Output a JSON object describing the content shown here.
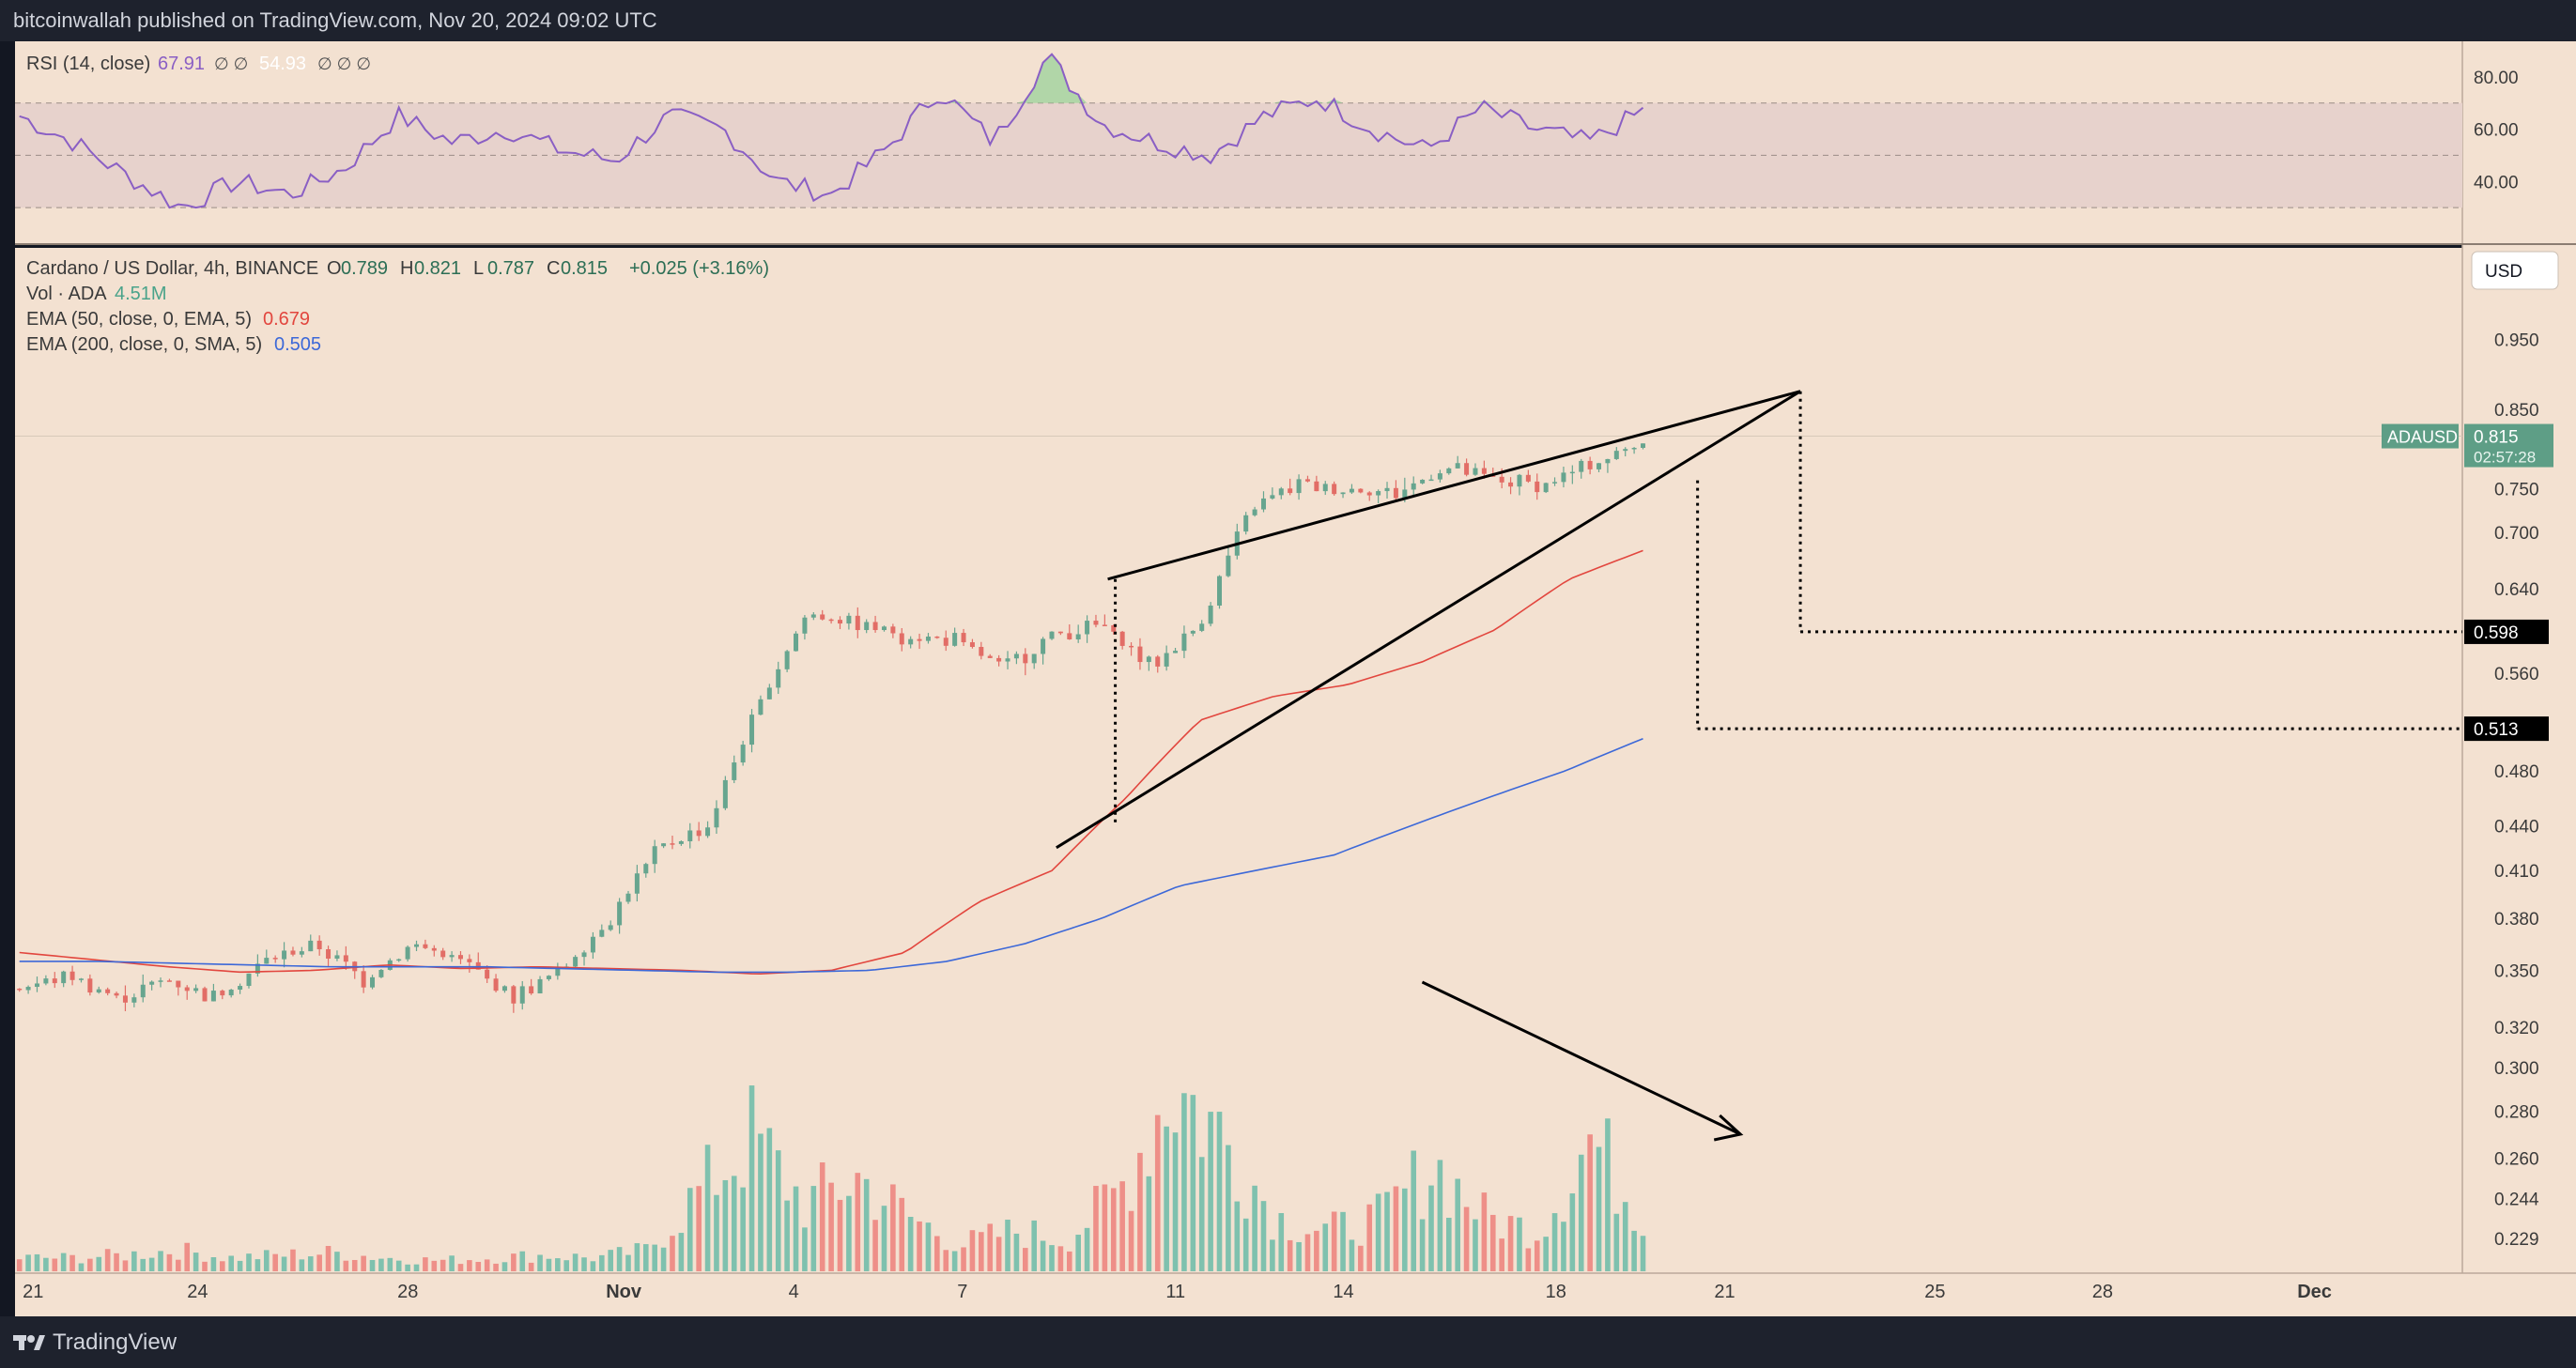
{
  "header": {
    "publisher": "bitcoinwallah published on TradingView.com, Nov 20, 2024 09:02 UTC"
  },
  "footer": {
    "brand": "TradingView",
    "logo_icon": "tradingview-logo-icon"
  },
  "colors": {
    "bg": "#f3e1d1",
    "up": "#67a58f",
    "down": "#e26d66",
    "ema50": "#e2463e",
    "ema200": "#3c68d8",
    "rsi": "#8a5fc4",
    "vol_up": "#7fc1ae",
    "vol_down": "#ee8f88"
  },
  "chart_data": {
    "type": "candlestick",
    "symbol_line": "Cardano / US Dollar, 4h, BINANCE",
    "ohlc_line": {
      "o_label": "O",
      "o": "0.789",
      "h_label": "H",
      "h": "0.821",
      "l_label": "L",
      "l": "0.787",
      "c_label": "C",
      "c": "0.815",
      "change": "+0.025 (+3.16%)"
    },
    "vol_line": {
      "label": "Vol · ADA",
      "value": "4.51M"
    },
    "ema50_line": {
      "label": "EMA (50, close, 0, EMA, 5)",
      "value": "0.679"
    },
    "ema200_line": {
      "label": "EMA (200, close, 0, SMA, 5)",
      "value": "0.505"
    },
    "rsi_line": {
      "label": "RSI (14, close)",
      "value": "67.91",
      "symbols": "∅ ∅",
      "value2": "54.93",
      "symbols2": "∅ ∅ ∅"
    },
    "currency": "USD",
    "symbol_tag": "ADAUSD",
    "last_price": "0.815",
    "countdown": "02:57:28",
    "y_ticks": [
      "0.950",
      "0.850",
      "0.750",
      "0.700",
      "0.640",
      "0.560",
      "0.480",
      "0.440",
      "0.410",
      "0.380",
      "0.350",
      "0.320",
      "0.300",
      "0.280",
      "0.260",
      "0.244",
      "0.229"
    ],
    "rsi_ticks": [
      "80.00",
      "60.00",
      "40.00"
    ],
    "x_ticks": [
      "21",
      "24",
      "28",
      "Nov",
      "4",
      "7",
      "11",
      "14",
      "18",
      "21",
      "25",
      "28",
      "Dec"
    ],
    "targets": [
      "0.598",
      "0.513"
    ],
    "price_anchors": [
      [
        0.32,
        0.36
      ],
      [
        0.34,
        0.355
      ],
      [
        0.33,
        0.34
      ],
      [
        0.34,
        0.35
      ],
      [
        0.33,
        0.34
      ],
      [
        0.35,
        0.36
      ],
      [
        0.36,
        0.37
      ],
      [
        0.34,
        0.35
      ],
      [
        0.36,
        0.37
      ],
      [
        0.35,
        0.36
      ],
      [
        0.33,
        0.34
      ],
      [
        0.34,
        0.36
      ],
      [
        0.37,
        0.39
      ],
      [
        0.41,
        0.44
      ],
      [
        0.43,
        0.45
      ],
      [
        0.44,
        0.62
      ],
      [
        0.6,
        0.63
      ],
      [
        0.6,
        0.615
      ],
      [
        0.59,
        0.6
      ],
      [
        0.56,
        0.62
      ],
      [
        0.53,
        0.6
      ],
      [
        0.59,
        0.6
      ],
      [
        0.6,
        0.61
      ],
      [
        0.56,
        0.57
      ],
      [
        0.58,
        0.63
      ],
      [
        0.69,
        0.76
      ],
      [
        0.75,
        0.76
      ],
      [
        0.73,
        0.77
      ],
      [
        0.73,
        0.76
      ],
      [
        0.76,
        0.79
      ],
      [
        0.75,
        0.77
      ],
      [
        0.75,
        0.76
      ],
      [
        0.77,
        0.79
      ],
      [
        0.8,
        0.815
      ]
    ],
    "ema50_anchors": [
      0.36,
      0.356,
      0.352,
      0.349,
      0.35,
      0.353,
      0.351,
      0.352,
      0.351,
      0.35,
      0.348,
      0.35,
      0.36,
      0.39,
      0.41,
      0.46,
      0.52,
      0.54,
      0.55,
      0.57,
      0.6,
      0.65,
      0.68
    ],
    "ema200_anchors": [
      0.355,
      0.355,
      0.354,
      0.353,
      0.352,
      0.352,
      0.352,
      0.351,
      0.35,
      0.349,
      0.349,
      0.35,
      0.355,
      0.365,
      0.38,
      0.4,
      0.41,
      0.42,
      0.44,
      0.46,
      0.48,
      0.505
    ],
    "rsi_anchors": [
      65,
      55,
      42,
      30,
      40,
      35,
      45,
      65,
      55,
      60,
      52,
      48,
      65,
      60,
      40,
      35,
      52,
      75,
      55,
      88,
      62,
      55,
      50,
      65,
      72,
      60,
      52,
      68,
      60,
      55,
      67
    ],
    "volume_anchors": [
      0.05,
      0.05,
      0.06,
      0.08,
      0.05,
      0.06,
      0.07,
      0.05,
      0.04,
      0.05,
      0.06,
      0.05,
      0.08,
      0.3,
      0.5,
      0.25,
      0.35,
      0.2,
      0.1,
      0.15,
      0.12,
      0.3,
      0.7,
      0.5,
      0.2,
      0.15,
      0.2,
      0.4,
      0.2,
      0.15,
      0.5,
      0.2
    ],
    "wedge": {
      "upper": [
        [
          0.64,
          "t:0.515"
        ],
        [
          0.863,
          "t:0.736"
        ]
      ],
      "lower": [
        [
          0.43,
          "t:0.42"
        ],
        [
          0.863,
          "t:0.736"
        ]
      ]
    }
  }
}
